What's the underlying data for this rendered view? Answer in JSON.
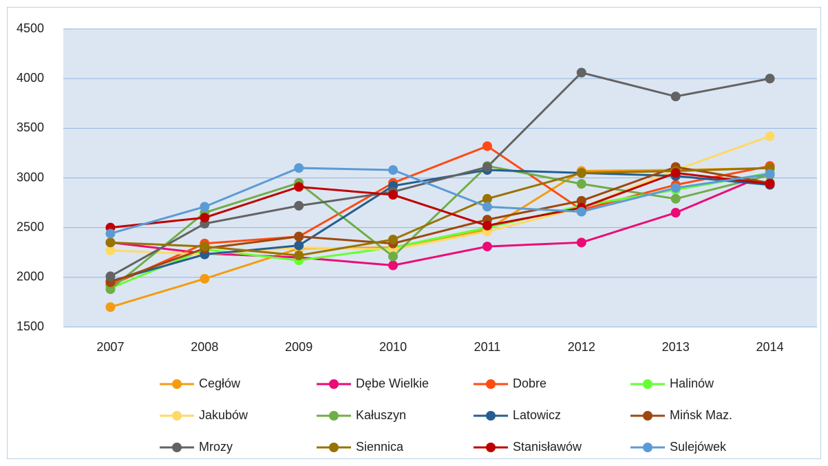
{
  "chart_data": {
    "type": "line",
    "categories": [
      "2007",
      "2008",
      "2009",
      "2010",
      "2011",
      "2012",
      "2013",
      "2014"
    ],
    "ylim": [
      1500,
      4500
    ],
    "yticks": [
      1500,
      2000,
      2500,
      3000,
      3500,
      4000,
      4500
    ],
    "grid": true,
    "series": [
      {
        "name": "Cegłów",
        "color": "#f39c12",
        "values": [
          1700,
          1985,
          2290,
          2300,
          2480,
          3070,
          3080,
          3100
        ]
      },
      {
        "name": "Dębe Wielkie",
        "color": "#ec0a76",
        "values": [
          2350,
          2240,
          2200,
          2120,
          2310,
          2350,
          2650,
          3050
        ]
      },
      {
        "name": "Dobre",
        "color": "#ff4a12",
        "values": [
          1920,
          2340,
          2410,
          2950,
          3320,
          2680,
          2930,
          3120
        ]
      },
      {
        "name": "Halinów",
        "color": "#66ff33",
        "values": [
          1890,
          2280,
          2170,
          2300,
          2500,
          2720,
          2880,
          3050
        ]
      },
      {
        "name": "Jakubów",
        "color": "#ffd966",
        "values": [
          2270,
          2230,
          2300,
          2280,
          2460,
          2700,
          3080,
          3420
        ]
      },
      {
        "name": "Kałuszyn",
        "color": "#70ad47",
        "values": [
          1880,
          2650,
          2950,
          2210,
          3120,
          2940,
          2790,
          3030
        ]
      },
      {
        "name": "Latowicz",
        "color": "#255e91",
        "values": [
          1960,
          2230,
          2320,
          2920,
          3080,
          3050,
          3020,
          2930
        ]
      },
      {
        "name": "Mińsk Maz.",
        "color": "#9e480e",
        "values": [
          1950,
          2290,
          2410,
          2340,
          2580,
          2770,
          3110,
          2950
        ]
      },
      {
        "name": "Mrozy",
        "color": "#636363",
        "values": [
          2010,
          2540,
          2720,
          2860,
          3110,
          4060,
          3820,
          4000
        ]
      },
      {
        "name": "Siennica",
        "color": "#997300",
        "values": [
          2350,
          2310,
          2220,
          2380,
          2790,
          3050,
          3070,
          3100
        ]
      },
      {
        "name": "Stanisławów",
        "color": "#c00000",
        "values": [
          2500,
          2600,
          2910,
          2830,
          2520,
          2700,
          3050,
          2940
        ]
      },
      {
        "name": "Sulejówek",
        "color": "#5b9bd5",
        "values": [
          2440,
          2710,
          3100,
          3080,
          2710,
          2660,
          2900,
          3040
        ]
      }
    ]
  }
}
